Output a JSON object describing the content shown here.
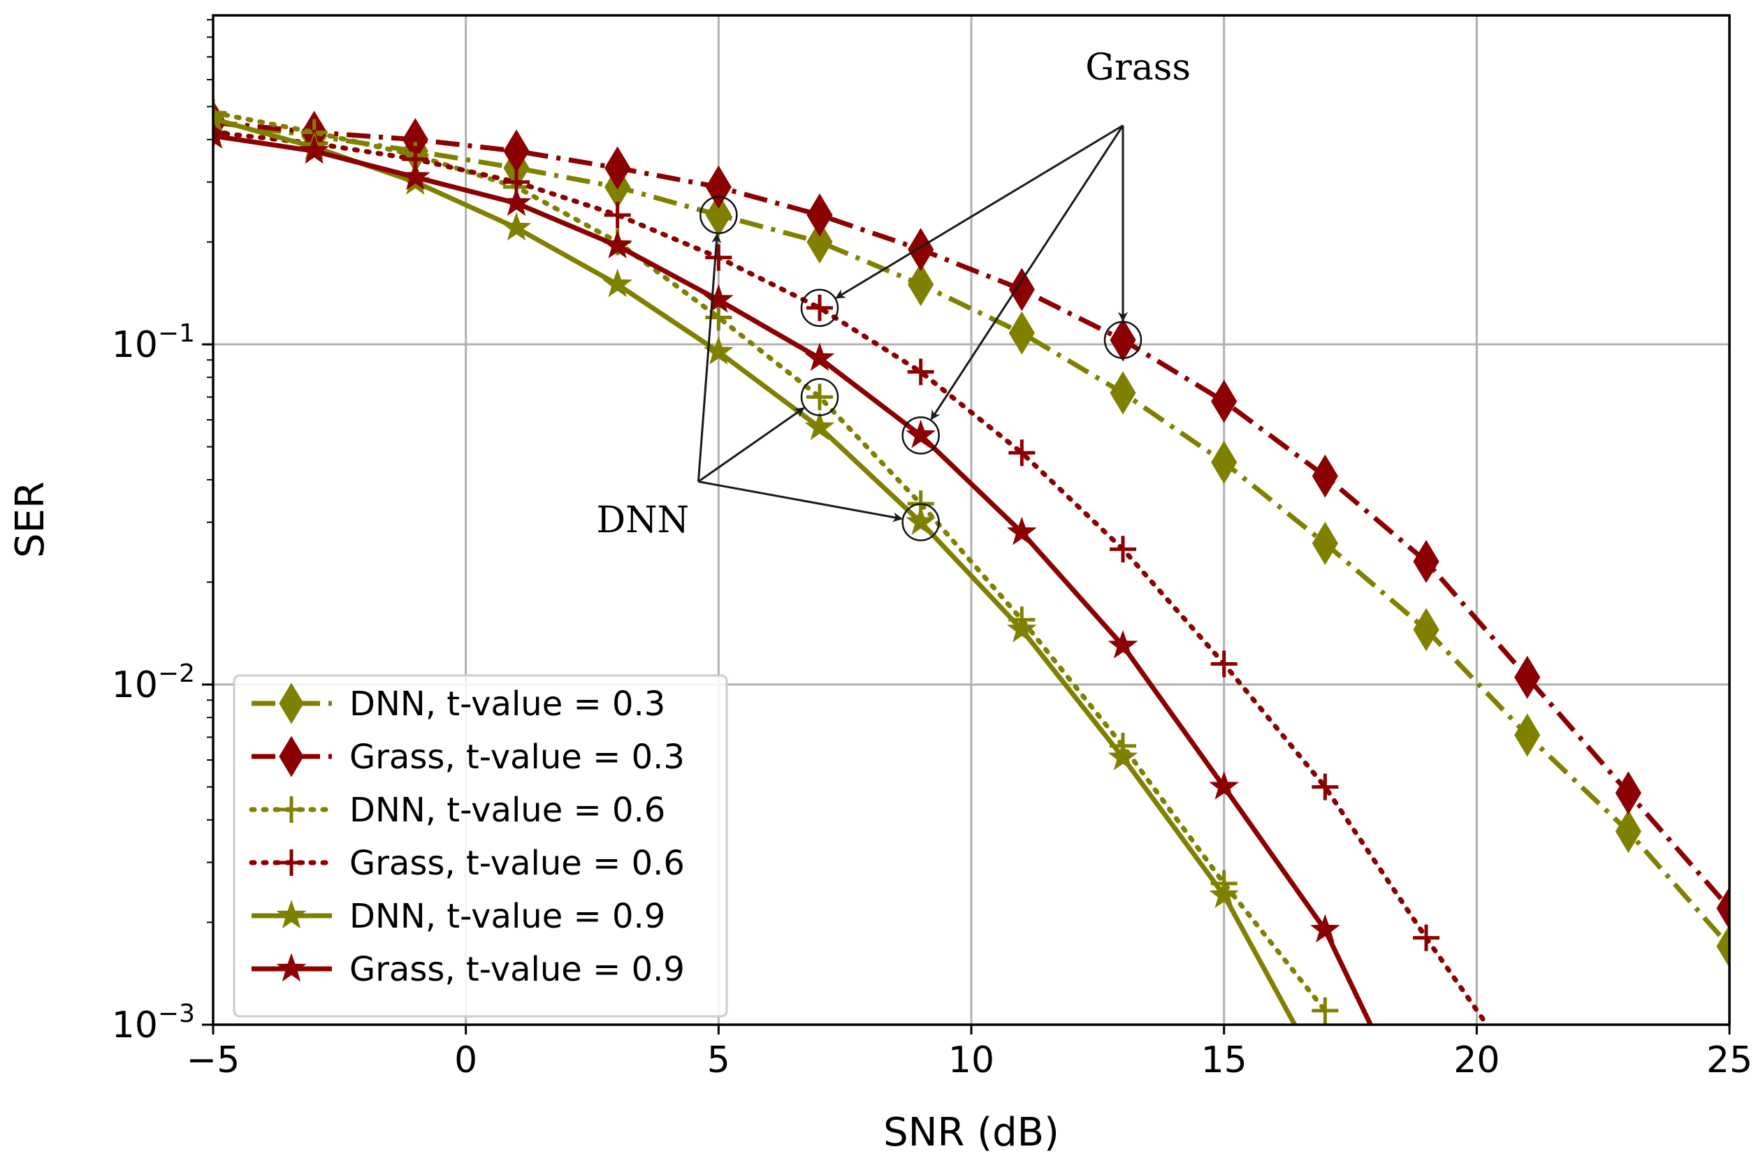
{
  "chart_data": {
    "type": "line",
    "title": "",
    "xlabel": "SNR (dB)",
    "ylabel": "SER",
    "yscale": "log",
    "xlim": [
      -5,
      25
    ],
    "ylim": [
      0.001,
      0.9
    ],
    "grid": true,
    "legend_position": "bottom-left",
    "x_ticks": [
      "−5",
      "0",
      "5",
      "10",
      "15",
      "20",
      "25"
    ],
    "x_tick_values": [
      -5,
      0,
      5,
      10,
      15,
      20,
      25
    ],
    "y_ticks": [
      {
        "value": 0.1,
        "base": "10",
        "exp": "−1"
      },
      {
        "value": 0.01,
        "base": "10",
        "exp": "−2"
      },
      {
        "value": 0.001,
        "base": "10",
        "exp": "−3"
      }
    ],
    "colors": {
      "olive": "#808000",
      "darkred": "#8b0000"
    },
    "series": [
      {
        "name": "DNN, t-value = 0.3",
        "color": "#808000",
        "style": "dashdot",
        "marker": "diamond",
        "x": [
          -5,
          -3,
          -1,
          1,
          3,
          5,
          7,
          9,
          11,
          13,
          15,
          17,
          19,
          21,
          23,
          25
        ],
        "y": [
          0.45,
          0.41,
          0.37,
          0.33,
          0.29,
          0.24,
          0.2,
          0.15,
          0.108,
          0.072,
          0.045,
          0.026,
          0.0145,
          0.0071,
          0.0037,
          0.0017
        ]
      },
      {
        "name": "Grass, t-value = 0.3",
        "color": "#8b0000",
        "style": "dashdot",
        "marker": "diamond",
        "x": [
          -5,
          -3,
          -1,
          1,
          3,
          5,
          7,
          9,
          11,
          13,
          15,
          17,
          19,
          21,
          23,
          25
        ],
        "y": [
          0.45,
          0.42,
          0.4,
          0.37,
          0.33,
          0.29,
          0.24,
          0.19,
          0.145,
          0.103,
          0.068,
          0.041,
          0.023,
          0.0105,
          0.0048,
          0.0022
        ]
      },
      {
        "name": "DNN, t-value = 0.6",
        "color": "#808000",
        "style": "dotted",
        "marker": "plus",
        "x": [
          -5,
          -3,
          -1,
          1,
          3,
          5,
          7,
          9,
          11,
          13,
          15,
          17
        ],
        "y": [
          0.48,
          0.42,
          0.36,
          0.29,
          0.2,
          0.12,
          0.07,
          0.034,
          0.0155,
          0.0066,
          0.0026,
          0.0011
        ]
      },
      {
        "name": "Grass, t-value = 0.6",
        "color": "#8b0000",
        "style": "dotted",
        "marker": "plus",
        "x": [
          -5,
          -3,
          -1,
          1,
          3,
          5,
          7,
          9,
          11,
          13,
          15,
          17,
          19,
          20.2
        ],
        "y": [
          0.42,
          0.39,
          0.35,
          0.3,
          0.24,
          0.18,
          0.128,
          0.083,
          0.048,
          0.025,
          0.0115,
          0.005,
          0.0018,
          0.001
        ]
      },
      {
        "name": "DNN, t-value = 0.9",
        "color": "#808000",
        "style": "solid",
        "marker": "star",
        "x": [
          -5,
          -3,
          -1,
          1,
          3,
          5,
          7,
          9,
          11,
          13,
          15,
          16.4
        ],
        "y": [
          0.46,
          0.38,
          0.3,
          0.22,
          0.15,
          0.095,
          0.057,
          0.03,
          0.0145,
          0.0061,
          0.0024,
          0.001
        ]
      },
      {
        "name": "Grass, t-value = 0.9",
        "color": "#8b0000",
        "style": "solid",
        "marker": "star",
        "x": [
          -5,
          -3,
          -1,
          1,
          3,
          5,
          7,
          9,
          11,
          13,
          15,
          17,
          17.9
        ],
        "y": [
          0.41,
          0.37,
          0.31,
          0.26,
          0.195,
          0.135,
          0.091,
          0.054,
          0.028,
          0.013,
          0.005,
          0.0019,
          0.001
        ]
      }
    ],
    "annotations": [
      {
        "text": "Grass",
        "text_at": {
          "x": 13.3,
          "y": 0.6
        },
        "arrow_from": {
          "x": 13.0,
          "y": 0.44
        },
        "targets": [
          {
            "x": 7,
            "y": 0.128
          },
          {
            "x": 9,
            "y": 0.054
          },
          {
            "x": 13,
            "y": 0.103
          }
        ],
        "circled": [
          {
            "x": 7,
            "y": 0.128
          },
          {
            "x": 9,
            "y": 0.054
          },
          {
            "x": 13,
            "y": 0.103
          }
        ]
      },
      {
        "text": "DNN",
        "text_at": {
          "x": 3.5,
          "y": 0.028
        },
        "arrow_from": {
          "x": 4.6,
          "y": 0.0395
        },
        "targets": [
          {
            "x": 5,
            "y": 0.24
          },
          {
            "x": 7,
            "y": 0.07
          },
          {
            "x": 9,
            "y": 0.03
          }
        ],
        "circled": [
          {
            "x": 5,
            "y": 0.24
          },
          {
            "x": 7,
            "y": 0.07
          },
          {
            "x": 9,
            "y": 0.03
          }
        ]
      }
    ]
  }
}
